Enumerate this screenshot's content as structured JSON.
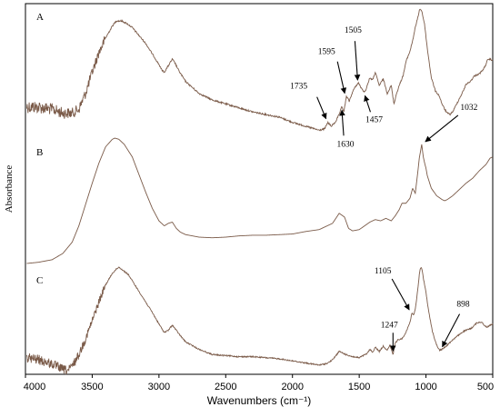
{
  "chart_data": {
    "type": "line",
    "title": "",
    "xlabel": "Wavenumbers (cm⁻¹)",
    "ylabel": "Absorbance",
    "xlim": [
      4000,
      500
    ],
    "x_reversed": true,
    "x_ticks": [
      4000,
      3500,
      3000,
      2500,
      2000,
      1500,
      1000,
      500
    ],
    "grid": false,
    "legend": "none",
    "line_color": "#7a5a48",
    "series": [
      {
        "name": "A",
        "noisy_below": 3400,
        "points": [
          [
            3990,
            0.74
          ],
          [
            3900,
            0.745
          ],
          [
            3800,
            0.76
          ],
          [
            3720,
            0.79
          ],
          [
            3650,
            0.79
          ],
          [
            3600,
            0.76
          ],
          [
            3550,
            0.64
          ],
          [
            3500,
            0.48
          ],
          [
            3450,
            0.33
          ],
          [
            3400,
            0.22
          ],
          [
            3350,
            0.13
          ],
          [
            3320,
            0.09
          ],
          [
            3280,
            0.09
          ],
          [
            3240,
            0.11
          ],
          [
            3200,
            0.14
          ],
          [
            3150,
            0.2
          ],
          [
            3100,
            0.26
          ],
          [
            3050,
            0.34
          ],
          [
            3000,
            0.42
          ],
          [
            2980,
            0.46
          ],
          [
            2960,
            0.48
          ],
          [
            2930,
            0.43
          ],
          [
            2900,
            0.38
          ],
          [
            2880,
            0.41
          ],
          [
            2850,
            0.47
          ],
          [
            2800,
            0.55
          ],
          [
            2700,
            0.64
          ],
          [
            2600,
            0.69
          ],
          [
            2500,
            0.72
          ],
          [
            2400,
            0.75
          ],
          [
            2300,
            0.78
          ],
          [
            2200,
            0.8
          ],
          [
            2100,
            0.82
          ],
          [
            2000,
            0.86
          ],
          [
            1900,
            0.89
          ],
          [
            1800,
            0.92
          ],
          [
            1760,
            0.91
          ],
          [
            1735,
            0.86
          ],
          [
            1710,
            0.89
          ],
          [
            1680,
            0.86
          ],
          [
            1650,
            0.8
          ],
          [
            1630,
            0.74
          ],
          [
            1615,
            0.78
          ],
          [
            1595,
            0.66
          ],
          [
            1575,
            0.7
          ],
          [
            1550,
            0.63
          ],
          [
            1530,
            0.59
          ],
          [
            1505,
            0.56
          ],
          [
            1480,
            0.61
          ],
          [
            1457,
            0.63
          ],
          [
            1440,
            0.58
          ],
          [
            1420,
            0.52
          ],
          [
            1400,
            0.54
          ],
          [
            1380,
            0.48
          ],
          [
            1350,
            0.58
          ],
          [
            1320,
            0.53
          ],
          [
            1290,
            0.64
          ],
          [
            1260,
            0.58
          ],
          [
            1240,
            0.72
          ],
          [
            1220,
            0.64
          ],
          [
            1200,
            0.58
          ],
          [
            1170,
            0.5
          ],
          [
            1150,
            0.4
          ],
          [
            1120,
            0.32
          ],
          [
            1100,
            0.24
          ],
          [
            1080,
            0.14
          ],
          [
            1060,
            0.06
          ],
          [
            1050,
            0.01
          ],
          [
            1040,
            0.0
          ],
          [
            1030,
            0.02
          ],
          [
            1010,
            0.12
          ],
          [
            990,
            0.3
          ],
          [
            960,
            0.52
          ],
          [
            930,
            0.62
          ],
          [
            900,
            0.66
          ],
          [
            880,
            0.72
          ],
          [
            860,
            0.76
          ],
          [
            840,
            0.79
          ],
          [
            820,
            0.8
          ],
          [
            800,
            0.78
          ],
          [
            780,
            0.74
          ],
          [
            760,
            0.7
          ],
          [
            740,
            0.66
          ],
          [
            720,
            0.62
          ],
          [
            700,
            0.57
          ],
          [
            680,
            0.56
          ],
          [
            660,
            0.54
          ],
          [
            640,
            0.51
          ],
          [
            620,
            0.5
          ],
          [
            600,
            0.49
          ],
          [
            580,
            0.47
          ],
          [
            560,
            0.44
          ],
          [
            540,
            0.39
          ],
          [
            520,
            0.38
          ],
          [
            500,
            0.39
          ]
        ]
      },
      {
        "name": "B",
        "points": [
          [
            3990,
            1.0
          ],
          [
            3900,
            0.99
          ],
          [
            3800,
            0.97
          ],
          [
            3720,
            0.92
          ],
          [
            3650,
            0.83
          ],
          [
            3600,
            0.7
          ],
          [
            3550,
            0.53
          ],
          [
            3500,
            0.36
          ],
          [
            3450,
            0.2
          ],
          [
            3400,
            0.07
          ],
          [
            3350,
            0.01
          ],
          [
            3330,
            0.0
          ],
          [
            3300,
            0.01
          ],
          [
            3260,
            0.05
          ],
          [
            3200,
            0.15
          ],
          [
            3150,
            0.29
          ],
          [
            3100,
            0.43
          ],
          [
            3050,
            0.56
          ],
          [
            3000,
            0.66
          ],
          [
            2960,
            0.7
          ],
          [
            2930,
            0.68
          ],
          [
            2900,
            0.67
          ],
          [
            2870,
            0.72
          ],
          [
            2840,
            0.75
          ],
          [
            2800,
            0.77
          ],
          [
            2700,
            0.79
          ],
          [
            2600,
            0.795
          ],
          [
            2500,
            0.79
          ],
          [
            2400,
            0.78
          ],
          [
            2300,
            0.775
          ],
          [
            2200,
            0.775
          ],
          [
            2100,
            0.77
          ],
          [
            2000,
            0.765
          ],
          [
            1900,
            0.745
          ],
          [
            1800,
            0.73
          ],
          [
            1700,
            0.68
          ],
          [
            1650,
            0.6
          ],
          [
            1610,
            0.63
          ],
          [
            1580,
            0.72
          ],
          [
            1550,
            0.74
          ],
          [
            1500,
            0.73
          ],
          [
            1460,
            0.7
          ],
          [
            1420,
            0.67
          ],
          [
            1380,
            0.65
          ],
          [
            1340,
            0.66
          ],
          [
            1300,
            0.64
          ],
          [
            1260,
            0.66
          ],
          [
            1230,
            0.62
          ],
          [
            1200,
            0.57
          ],
          [
            1180,
            0.52
          ],
          [
            1150,
            0.52
          ],
          [
            1120,
            0.48
          ],
          [
            1100,
            0.4
          ],
          [
            1080,
            0.44
          ],
          [
            1060,
            0.26
          ],
          [
            1050,
            0.16
          ],
          [
            1040,
            0.1
          ],
          [
            1032,
            0.05
          ],
          [
            1020,
            0.15
          ],
          [
            1010,
            0.2
          ],
          [
            1000,
            0.24
          ],
          [
            990,
            0.3
          ],
          [
            960,
            0.4
          ],
          [
            920,
            0.46
          ],
          [
            880,
            0.49
          ],
          [
            860,
            0.5
          ],
          [
            840,
            0.49
          ],
          [
            800,
            0.46
          ],
          [
            750,
            0.41
          ],
          [
            700,
            0.36
          ],
          [
            650,
            0.32
          ],
          [
            600,
            0.26
          ],
          [
            550,
            0.21
          ],
          [
            520,
            0.16
          ],
          [
            500,
            0.15
          ]
        ]
      },
      {
        "name": "C",
        "noisy_below": 3400,
        "points": [
          [
            3990,
            0.86
          ],
          [
            3900,
            0.88
          ],
          [
            3800,
            0.92
          ],
          [
            3720,
            0.97
          ],
          [
            3680,
            0.98
          ],
          [
            3650,
            0.94
          ],
          [
            3600,
            0.83
          ],
          [
            3550,
            0.68
          ],
          [
            3500,
            0.51
          ],
          [
            3450,
            0.33
          ],
          [
            3400,
            0.17
          ],
          [
            3350,
            0.06
          ],
          [
            3320,
            0.02
          ],
          [
            3300,
            0.0
          ],
          [
            3270,
            0.03
          ],
          [
            3230,
            0.07
          ],
          [
            3200,
            0.13
          ],
          [
            3150,
            0.23
          ],
          [
            3100,
            0.33
          ],
          [
            3050,
            0.43
          ],
          [
            3000,
            0.54
          ],
          [
            2960,
            0.62
          ],
          [
            2930,
            0.6
          ],
          [
            2900,
            0.55
          ],
          [
            2870,
            0.6
          ],
          [
            2840,
            0.65
          ],
          [
            2800,
            0.71
          ],
          [
            2700,
            0.78
          ],
          [
            2600,
            0.83
          ],
          [
            2500,
            0.84
          ],
          [
            2400,
            0.85
          ],
          [
            2300,
            0.85
          ],
          [
            2200,
            0.86
          ],
          [
            2100,
            0.87
          ],
          [
            2000,
            0.89
          ],
          [
            1900,
            0.91
          ],
          [
            1800,
            0.93
          ],
          [
            1760,
            0.92
          ],
          [
            1735,
            0.91
          ],
          [
            1700,
            0.88
          ],
          [
            1650,
            0.8
          ],
          [
            1600,
            0.83
          ],
          [
            1550,
            0.85
          ],
          [
            1500,
            0.86
          ],
          [
            1470,
            0.84
          ],
          [
            1440,
            0.82
          ],
          [
            1420,
            0.78
          ],
          [
            1400,
            0.81
          ],
          [
            1380,
            0.76
          ],
          [
            1350,
            0.8
          ],
          [
            1320,
            0.75
          ],
          [
            1290,
            0.79
          ],
          [
            1270,
            0.74
          ],
          [
            1247,
            0.83
          ],
          [
            1230,
            0.72
          ],
          [
            1210,
            0.69
          ],
          [
            1180,
            0.68
          ],
          [
            1150,
            0.62
          ],
          [
            1120,
            0.52
          ],
          [
            1105,
            0.44
          ],
          [
            1090,
            0.45
          ],
          [
            1080,
            0.4
          ],
          [
            1060,
            0.2
          ],
          [
            1050,
            0.07
          ],
          [
            1040,
            0.0
          ],
          [
            1032,
            0.01
          ],
          [
            1020,
            0.1
          ],
          [
            1000,
            0.24
          ],
          [
            980,
            0.42
          ],
          [
            950,
            0.62
          ],
          [
            920,
            0.74
          ],
          [
            898,
            0.79
          ],
          [
            880,
            0.78
          ],
          [
            860,
            0.76
          ],
          [
            840,
            0.74
          ],
          [
            800,
            0.69
          ],
          [
            760,
            0.65
          ],
          [
            720,
            0.61
          ],
          [
            700,
            0.6
          ],
          [
            660,
            0.58
          ],
          [
            620,
            0.53
          ],
          [
            580,
            0.52
          ],
          [
            560,
            0.56
          ],
          [
            540,
            0.57
          ],
          [
            520,
            0.55
          ],
          [
            500,
            0.54
          ]
        ]
      }
    ],
    "panel_labels": [
      "A",
      "B",
      "C"
    ],
    "annotations": [
      {
        "series": "A",
        "label": "1735",
        "x": 1735
      },
      {
        "series": "A",
        "label": "1595",
        "x": 1595
      },
      {
        "series": "A",
        "label": "1505",
        "x": 1505
      },
      {
        "series": "A",
        "label": "1630",
        "x": 1630
      },
      {
        "series": "A",
        "label": "1457",
        "x": 1457
      },
      {
        "series": "B",
        "label": "1032",
        "x": 1032
      },
      {
        "series": "C",
        "label": "1105",
        "x": 1105
      },
      {
        "series": "C",
        "label": "1247",
        "x": 1247
      },
      {
        "series": "C",
        "label": "898",
        "x": 898
      }
    ]
  }
}
